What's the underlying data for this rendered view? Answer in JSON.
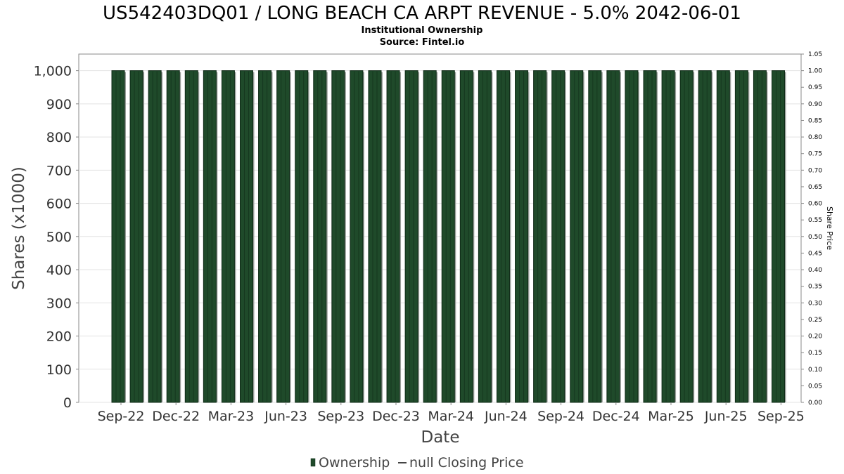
{
  "chart_data": {
    "type": "bar",
    "title": "US542403DQ01 / LONG BEACH CA ARPT REVENUE - 5.0% 2042-06-01",
    "subtitle": "Institutional Ownership",
    "source": "Source: Fintel.io",
    "xlabel": "Date",
    "ylabel": "Shares (x1000)",
    "y2label": "Share Price",
    "ylim": [
      0,
      1050
    ],
    "y2lim": [
      0,
      1.05
    ],
    "yticks": [
      "0",
      "100",
      "200",
      "300",
      "400",
      "500",
      "600",
      "700",
      "800",
      "900",
      "1,000"
    ],
    "y2ticks": [
      "0.00",
      "0.05",
      "0.10",
      "0.15",
      "0.20",
      "0.25",
      "0.30",
      "0.35",
      "0.40",
      "0.45",
      "0.50",
      "0.55",
      "0.60",
      "0.65",
      "0.70",
      "0.75",
      "0.80",
      "0.85",
      "0.90",
      "0.95",
      "1.00",
      "1.05"
    ],
    "xticks": [
      "Sep-22",
      "Dec-22",
      "Mar-23",
      "Jun-23",
      "Sep-23",
      "Dec-23",
      "Mar-24",
      "Jun-24",
      "Sep-24",
      "Dec-24",
      "Mar-25",
      "Jun-25",
      "Sep-25"
    ],
    "series": [
      {
        "name": "Ownership",
        "color": "#1f4a2a",
        "values": [
          1000,
          1000,
          1000,
          1000,
          1000,
          1000,
          1000,
          1000,
          1000,
          1000,
          1000,
          1000,
          1000,
          1000,
          1000,
          1000,
          1000,
          1000,
          1000,
          1000,
          1000,
          1000,
          1000,
          1000,
          1000,
          1000,
          1000,
          1000,
          1000,
          1000,
          1000,
          1000,
          1000,
          1000,
          1000,
          1000,
          1000
        ]
      },
      {
        "name": "null Closing Price",
        "color": "#444444",
        "values": []
      }
    ],
    "grid": true,
    "legend_position": "bottom"
  }
}
